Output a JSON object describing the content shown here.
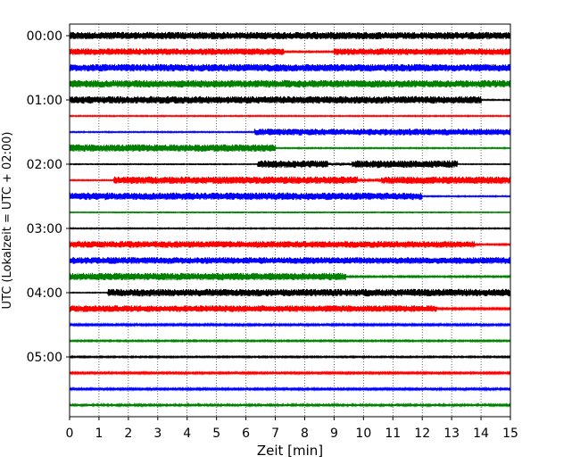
{
  "chart_data": {
    "type": "line",
    "title": "",
    "xlabel": "Zeit  [min]",
    "ylabel": "UTC (Lokalzeit = UTC + 02:00)",
    "xlim": [
      0,
      15
    ],
    "x_ticks": [
      "0",
      "1",
      "2",
      "3",
      "4",
      "5",
      "6",
      "7",
      "8",
      "9",
      "10",
      "11",
      "12",
      "13",
      "14",
      "15"
    ],
    "y_ticks": [
      "00:00",
      "01:00",
      "02:00",
      "03:00",
      "04:00",
      "05:00"
    ],
    "grid": "vertical-dotted",
    "trace_colors": [
      "#000000",
      "#ff0000",
      "#0000ff",
      "#008000"
    ],
    "series": [
      {
        "start": "00:00",
        "amplitude": [
          [
            0,
            15,
            1.0
          ]
        ]
      },
      {
        "start": "00:15",
        "amplitude": [
          [
            0,
            7.3,
            0.9
          ],
          [
            7.3,
            9.0,
            0.2
          ],
          [
            9.0,
            15,
            0.9
          ]
        ]
      },
      {
        "start": "00:30",
        "amplitude": [
          [
            0,
            15,
            1.0
          ]
        ]
      },
      {
        "start": "00:45",
        "amplitude": [
          [
            0,
            15,
            1.0
          ]
        ]
      },
      {
        "start": "01:00",
        "amplitude": [
          [
            0,
            14.0,
            1.0
          ],
          [
            14.0,
            15,
            0.15
          ]
        ]
      },
      {
        "start": "01:15",
        "amplitude": [
          [
            0,
            15,
            0.15
          ]
        ]
      },
      {
        "start": "01:30",
        "amplitude": [
          [
            0,
            6.3,
            0.15
          ],
          [
            6.3,
            15,
            0.9
          ]
        ]
      },
      {
        "start": "01:45",
        "amplitude": [
          [
            0,
            7.0,
            1.0
          ],
          [
            7.0,
            15,
            0.15
          ]
        ]
      },
      {
        "start": "02:00",
        "amplitude": [
          [
            0,
            6.4,
            0.12
          ],
          [
            6.4,
            8.8,
            1.0
          ],
          [
            8.8,
            9.6,
            0.4
          ],
          [
            9.6,
            13.2,
            1.0
          ],
          [
            13.2,
            15,
            0.12
          ]
        ]
      },
      {
        "start": "02:15",
        "amplitude": [
          [
            0,
            1.5,
            0.15
          ],
          [
            1.5,
            9.8,
            1.0
          ],
          [
            9.8,
            10.6,
            0.3
          ],
          [
            10.6,
            15,
            1.0
          ]
        ]
      },
      {
        "start": "02:30",
        "amplitude": [
          [
            0,
            12.0,
            1.0
          ],
          [
            12.0,
            15,
            0.15
          ]
        ]
      },
      {
        "start": "02:45",
        "amplitude": [
          [
            0,
            15,
            0.12
          ]
        ]
      },
      {
        "start": "03:00",
        "amplitude": [
          [
            0,
            15,
            0.15
          ]
        ]
      },
      {
        "start": "03:15",
        "amplitude": [
          [
            0,
            13.8,
            0.9
          ],
          [
            13.8,
            15,
            0.2
          ]
        ]
      },
      {
        "start": "03:30",
        "amplitude": [
          [
            0,
            15,
            0.9
          ]
        ]
      },
      {
        "start": "03:45",
        "amplitude": [
          [
            0,
            9.4,
            1.0
          ],
          [
            9.4,
            15,
            0.2
          ]
        ]
      },
      {
        "start": "04:00",
        "amplitude": [
          [
            0,
            1.3,
            0.12
          ],
          [
            1.3,
            15,
            1.0
          ]
        ]
      },
      {
        "start": "04:15",
        "amplitude": [
          [
            0,
            12.5,
            0.9
          ],
          [
            12.5,
            15,
            0.25
          ]
        ]
      },
      {
        "start": "04:30",
        "amplitude": [
          [
            0,
            15,
            0.25
          ]
        ]
      },
      {
        "start": "04:45",
        "amplitude": [
          [
            0,
            15,
            0.2
          ]
        ]
      },
      {
        "start": "05:00",
        "amplitude": [
          [
            0,
            15,
            0.2
          ]
        ]
      },
      {
        "start": "05:15",
        "amplitude": [
          [
            0,
            15,
            0.25
          ]
        ]
      },
      {
        "start": "05:30",
        "amplitude": [
          [
            0,
            15,
            0.25
          ]
        ]
      },
      {
        "start": "05:45",
        "amplitude": [
          [
            0,
            15,
            0.3
          ]
        ]
      }
    ]
  }
}
